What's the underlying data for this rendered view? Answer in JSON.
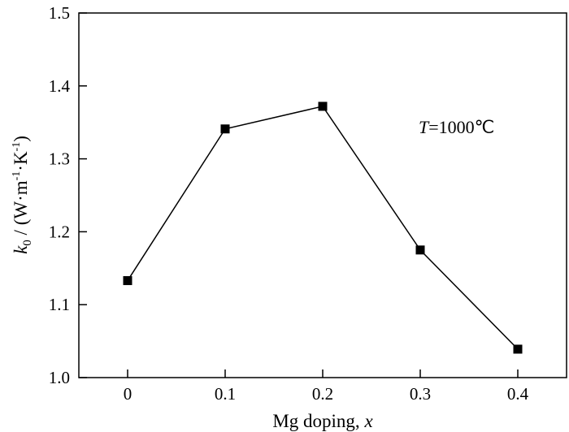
{
  "chart_data": {
    "type": "line",
    "x": [
      0,
      0.1,
      0.2,
      0.3,
      0.4
    ],
    "x_tick_labels": [
      "0",
      "0.1",
      "0.2",
      "0.3",
      "0.4"
    ],
    "series": [
      {
        "values": [
          1.133,
          1.341,
          1.372,
          1.175,
          1.039
        ]
      }
    ],
    "xlim": [
      -0.05,
      0.45
    ],
    "ylim": [
      1.0,
      1.5
    ],
    "y_ticks": [
      1.0,
      1.1,
      1.2,
      1.3,
      1.4,
      1.5
    ],
    "y_tick_labels": [
      "1.0",
      "1.1",
      "1.2",
      "1.3",
      "1.4",
      "1.5"
    ],
    "xlabel": {
      "main": "Mg doping, ",
      "var": "x"
    },
    "ylabel": {
      "var": "k",
      "sub": "0",
      "mid": " / (W·m",
      "exp1": "-1",
      "dot": "·K",
      "exp2": "-1",
      "end": ")"
    },
    "annotation": {
      "var": "T",
      "rest": "=1000℃"
    },
    "marker": "square",
    "grid": false,
    "colors": {
      "line": "#000000",
      "marker": "#000000"
    }
  }
}
